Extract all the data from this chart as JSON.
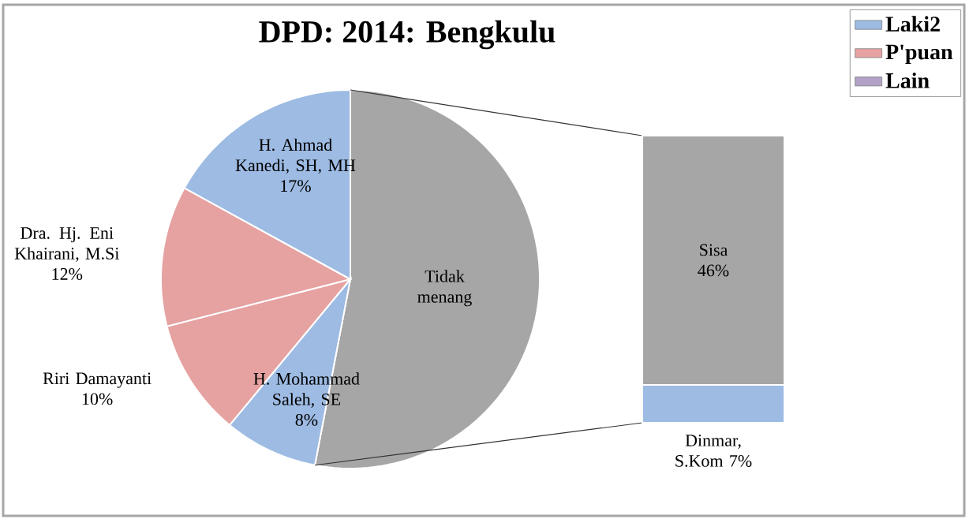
{
  "chart_data": [
    {
      "type": "pie",
      "title": "DPD: 2014: Bengkulu",
      "categories": [
        "Tidak menang",
        "H. Mohammad Saleh, SE",
        "Riri Damayanti",
        "Dra. Hj. Eni Khairani, M.Si",
        "H. Ahmad Kanedi, SH, MH"
      ],
      "values": [
        53,
        8,
        10,
        12,
        17
      ],
      "value_labels": [
        null,
        "8%",
        "10%",
        "12%",
        "17%"
      ],
      "colors": [
        "#a6a6a6",
        "#9dbbe3",
        "#e6a1a1",
        "#e6a1a1",
        "#9dbbe3"
      ]
    },
    {
      "type": "bar",
      "stacked": true,
      "categories": [
        null
      ],
      "legend": "top right",
      "series": [
        {
          "color": "#9dbbe3",
          "values": [
            7
          ],
          "value_labels": [
            "Dinmar, S.Kom 7%"
          ]
        },
        {
          "color": "#a6a6a6",
          "values": [
            46
          ],
          "value_labels": [
            "Sisa 46%"
          ]
        },
        {
          "name": "Laki2",
          "color": "#9dbbe3",
          "values": [
            null
          ]
        },
        {
          "name": "P'puan",
          "color": "#e6a1a1",
          "values": [
            null
          ]
        },
        {
          "name": "Lain",
          "color": "#b3a2c7",
          "values": [
            null
          ]
        }
      ]
    }
  ]
}
